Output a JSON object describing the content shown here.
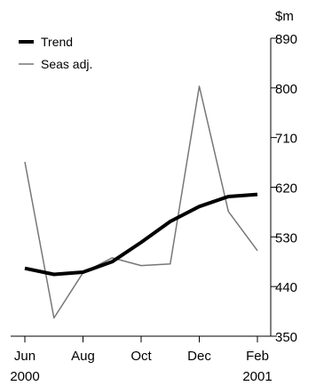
{
  "chart_data": {
    "type": "line",
    "unit": "$m",
    "x": [
      "Jun 2000",
      "Jul 2000",
      "Aug 2000",
      "Sep 2000",
      "Oct 2000",
      "Nov 2000",
      "Dec 2000",
      "Jan 2001",
      "Feb 2001"
    ],
    "x_tick_labels": [
      {
        "month": "Jun",
        "year": "2000",
        "index": 0
      },
      {
        "month": "Aug",
        "year": "",
        "index": 2
      },
      {
        "month": "Oct",
        "year": "",
        "index": 4
      },
      {
        "month": "Dec",
        "year": "",
        "index": 6
      },
      {
        "month": "Feb",
        "year": "2001",
        "index": 8
      }
    ],
    "y_ticks": [
      350,
      440,
      530,
      620,
      710,
      800,
      890
    ],
    "ylim": [
      350,
      890
    ],
    "grid": false,
    "legend_position": "top-left",
    "series": [
      {
        "name": "Trend",
        "style": "thick",
        "color": "#000000",
        "values": [
          473,
          462,
          466,
          485,
          520,
          558,
          585,
          603,
          607
        ]
      },
      {
        "name": "Seas adj.",
        "style": "thin",
        "color": "#777777",
        "values": [
          666,
          383,
          465,
          492,
          478,
          481,
          803,
          576,
          505
        ]
      }
    ]
  }
}
